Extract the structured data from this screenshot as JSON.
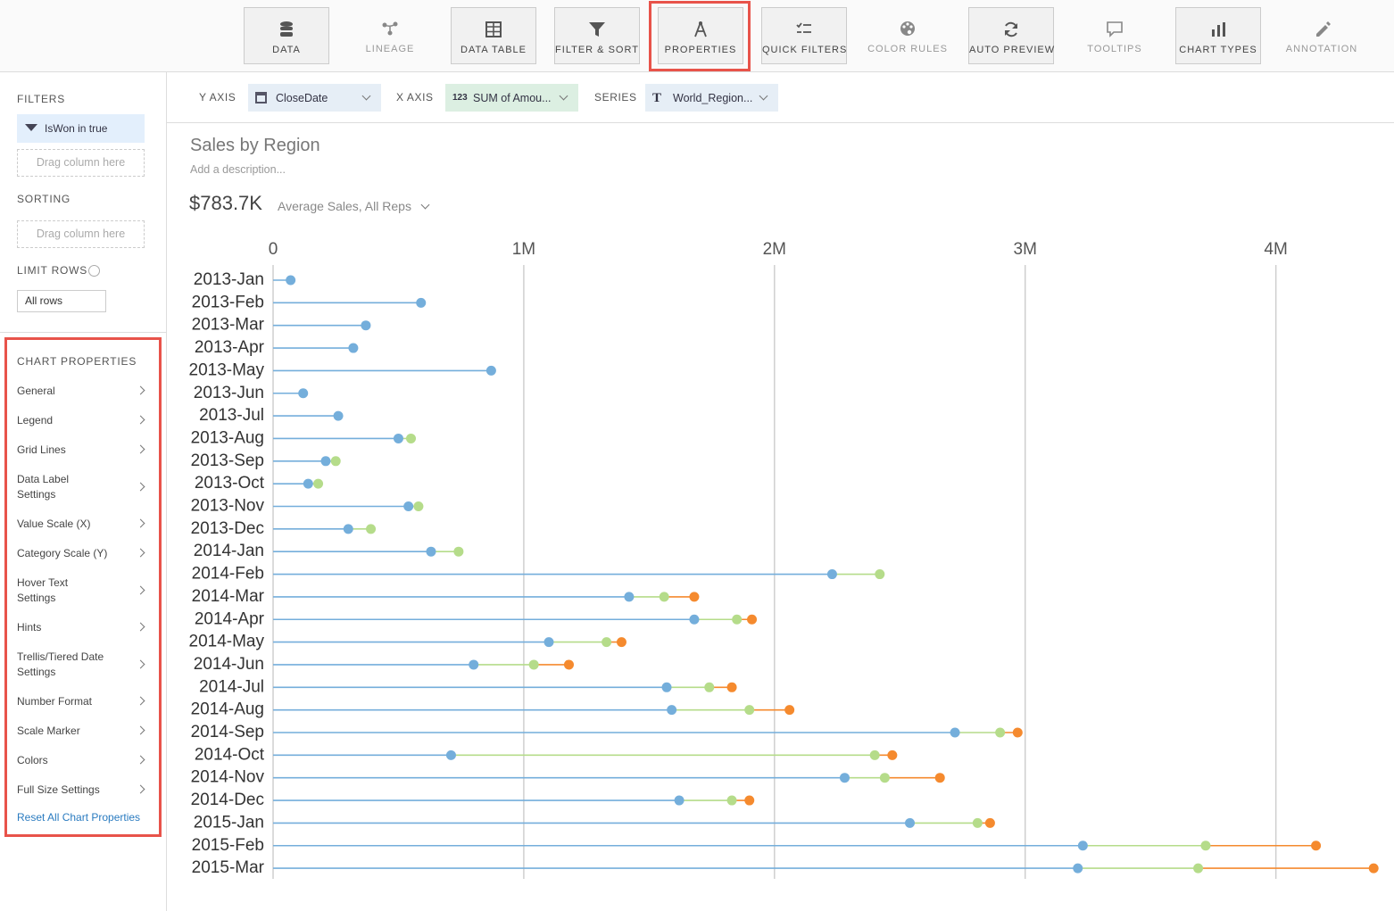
{
  "toolbar": {
    "buttons": [
      "DATA",
      "LINEAGE",
      "DATA TABLE",
      "FILTER & SORT",
      "PROPERTIES",
      "QUICK FILTERS",
      "COLOR RULES",
      "AUTO PREVIEW",
      "TOOLTIPS",
      "CHART TYPES",
      "ANNOTATION"
    ]
  },
  "sidebar": {
    "filters": {
      "title": "FILTERS",
      "chip": "IsWon in true",
      "drop_hint": "Drag column here"
    },
    "sorting": {
      "title": "SORTING",
      "drop_hint": "Drag column here"
    },
    "limit_rows": {
      "title": "LIMIT ROWS",
      "value": "All rows"
    },
    "chart_properties": {
      "title": "CHART PROPERTIES",
      "items": [
        [
          "General"
        ],
        [
          "Legend"
        ],
        [
          "Grid Lines"
        ],
        [
          "Data Label",
          "Settings"
        ],
        [
          "Value Scale (X)"
        ],
        [
          "Category Scale (Y)"
        ],
        [
          "Hover Text",
          "Settings"
        ],
        [
          "Hints"
        ],
        [
          "Trellis/Tiered Date",
          "Settings"
        ],
        [
          "Number Format"
        ],
        [
          "Scale Marker"
        ],
        [
          "Colors"
        ],
        [
          "Full Size Settings"
        ]
      ],
      "reset": "Reset All Chart Properties"
    }
  },
  "encodings": [
    {
      "label": "Y AXIS",
      "field": "CloseDate"
    },
    {
      "label": "X AXIS",
      "badge": "123",
      "field": "SUM of Amou..."
    },
    {
      "label": "SERIES",
      "badge": "T",
      "field": "World_Region..."
    }
  ],
  "chart_data": {
    "type": "lollipop",
    "title": "Sales by Region",
    "description": "Add a description...",
    "metric": "$783.7K",
    "metric_label": "Average Sales, All Reps",
    "categories": [
      "2013-Jan",
      "2013-Feb",
      "2013-Mar",
      "2013-Apr",
      "2013-May",
      "2013-Jun",
      "2013-Jul",
      "2013-Aug",
      "2013-Sep",
      "2013-Oct",
      "2013-Nov",
      "2013-Dec",
      "2014-Jan",
      "2014-Feb",
      "2014-Mar",
      "2014-Apr",
      "2014-May",
      "2014-Jun",
      "2014-Jul",
      "2014-Aug",
      "2014-Sep",
      "2014-Oct",
      "2014-Nov",
      "2014-Dec",
      "2015-Jan",
      "2015-Feb",
      "2015-Mar"
    ],
    "series": [
      {
        "color": "#74aedb",
        "values": [
          70000,
          590000,
          370000,
          320000,
          870000,
          120000,
          260000,
          500000,
          210000,
          140000,
          540000,
          300000,
          630000,
          2230000,
          1420000,
          1680000,
          1100000,
          800000,
          1570000,
          1590000,
          2720000,
          710000,
          2280000,
          1620000,
          2540000,
          3230000,
          3210000
        ]
      },
      {
        "color": "#b5dc8a",
        "values": [
          null,
          null,
          null,
          null,
          null,
          null,
          null,
          550000,
          250000,
          180000,
          580000,
          390000,
          740000,
          2420000,
          1560000,
          1850000,
          1330000,
          1040000,
          1740000,
          1900000,
          2900000,
          2400000,
          2440000,
          1830000,
          2810000,
          3720000,
          3690000
        ]
      },
      {
        "color": "#f58a2e",
        "values": [
          null,
          null,
          null,
          null,
          null,
          null,
          null,
          null,
          null,
          null,
          null,
          null,
          null,
          null,
          1680000,
          1910000,
          1390000,
          1180000,
          1830000,
          2060000,
          2970000,
          2470000,
          2660000,
          1900000,
          2860000,
          4160000,
          4390000
        ]
      }
    ],
    "xlim": [
      0,
      4400000
    ],
    "xticks": [
      0,
      {
        "value": 1000000,
        "label": "1M"
      },
      {
        "value": 2000000,
        "label": "2M"
      },
      {
        "value": 3000000,
        "label": "3M"
      },
      {
        "value": 4000000,
        "label": "4M"
      }
    ],
    "grid": true
  }
}
